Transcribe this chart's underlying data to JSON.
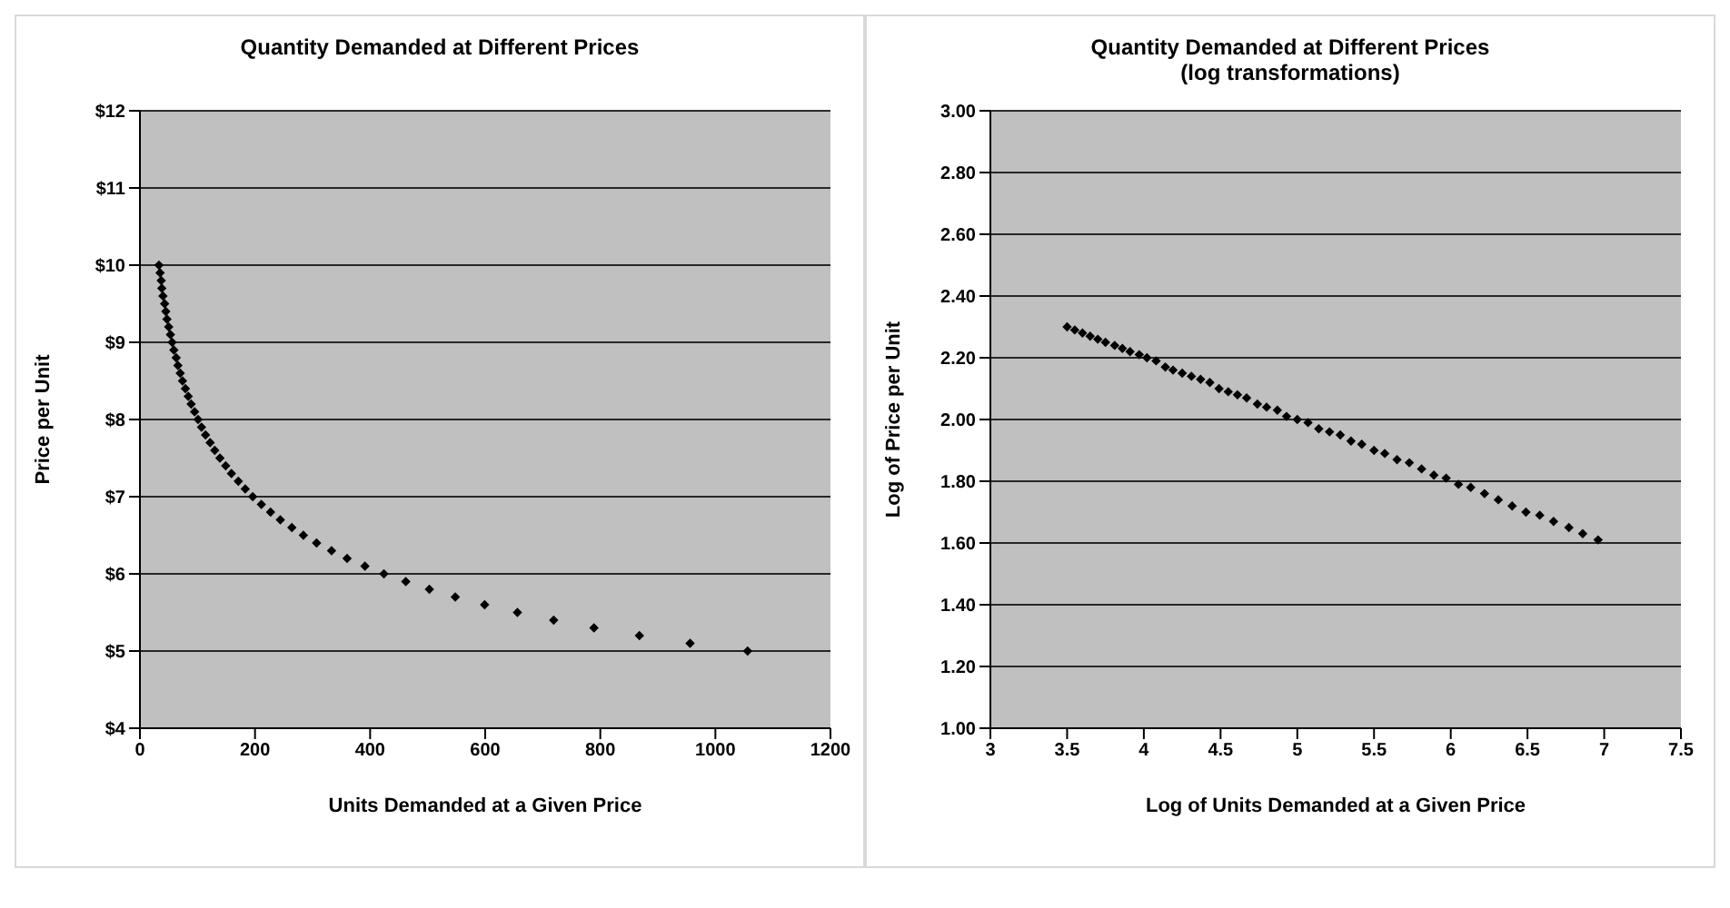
{
  "chart_data": [
    {
      "type": "scatter",
      "title": "Quantity Demanded at Different Prices",
      "xlabel": "Units Demanded at a Given Price",
      "ylabel": "Price per Unit",
      "xlim": [
        0,
        1200
      ],
      "xticks": [
        0,
        200,
        400,
        600,
        800,
        1000,
        1200
      ],
      "ylim": [
        4,
        12
      ],
      "yticks": [
        {
          "value": 4,
          "label": "$4"
        },
        {
          "value": 5,
          "label": "$5"
        },
        {
          "value": 6,
          "label": "$6"
        },
        {
          "value": 7,
          "label": "$7"
        },
        {
          "value": 8,
          "label": "$8"
        },
        {
          "value": 9,
          "label": "$9"
        },
        {
          "value": 10,
          "label": "$10"
        },
        {
          "value": 11,
          "label": "$11"
        },
        {
          "value": 12,
          "label": "$12"
        }
      ],
      "grid": "y",
      "legend": false,
      "marker": "diamond",
      "series": [
        {
          "color": "#000000",
          "x": [
            33,
            35,
            37,
            38,
            40,
            43,
            45,
            47,
            50,
            53,
            56,
            59,
            63,
            66,
            70,
            74,
            79,
            84,
            89,
            95,
            101,
            107,
            114,
            122,
            130,
            139,
            149,
            159,
            171,
            183,
            196,
            211,
            227,
            244,
            264,
            284,
            307,
            333,
            360,
            391,
            424,
            462,
            503,
            548,
            599,
            656,
            719,
            789,
            868,
            956,
            1056
          ],
          "values": [
            10,
            9.9,
            9.8,
            9.7,
            9.6,
            9.5,
            9.4,
            9.3,
            9.2,
            9.1,
            9,
            8.9,
            8.8,
            8.7,
            8.6,
            8.5,
            8.4,
            8.3,
            8.2,
            8.1,
            8,
            7.9,
            7.8,
            7.7,
            7.6,
            7.5,
            7.4,
            7.3,
            7.2,
            7.1,
            7,
            6.9,
            6.8,
            6.7,
            6.6,
            6.5,
            6.4,
            6.3,
            6.2,
            6.1,
            6,
            5.9,
            5.8,
            5.7,
            5.6,
            5.5,
            5.4,
            5.3,
            5.2,
            5.1,
            5
          ]
        }
      ]
    },
    {
      "type": "scatter",
      "title": "Quantity Demanded at Different Prices\n(log transformations)",
      "xlabel": "Log of Units Demanded at a Given Price",
      "ylabel": "Log of Price per Unit",
      "xlim": [
        3,
        7.5
      ],
      "xticks": [
        3,
        3.5,
        4,
        4.5,
        5,
        5.5,
        6,
        6.5,
        7,
        7.5
      ],
      "ylim": [
        1,
        3
      ],
      "yticks": [
        {
          "value": 1,
          "label": "1.00"
        },
        {
          "value": 1.2,
          "label": "1.20"
        },
        {
          "value": 1.4,
          "label": "1.40"
        },
        {
          "value": 1.6,
          "label": "1.60"
        },
        {
          "value": 1.8,
          "label": "1.80"
        },
        {
          "value": 2,
          "label": "2.00"
        },
        {
          "value": 2.2,
          "label": "2.20"
        },
        {
          "value": 2.4,
          "label": "2.40"
        },
        {
          "value": 2.6,
          "label": "2.60"
        },
        {
          "value": 2.8,
          "label": "2.80"
        },
        {
          "value": 3,
          "label": "3.00"
        }
      ],
      "grid": "y",
      "legend": false,
      "marker": "diamond",
      "series": [
        {
          "color": "#000000",
          "x": [
            3.5,
            3.55,
            3.6,
            3.65,
            3.7,
            3.75,
            3.81,
            3.86,
            3.91,
            3.97,
            4.02,
            4.08,
            4.14,
            4.19,
            4.25,
            4.31,
            4.37,
            4.43,
            4.49,
            4.55,
            4.61,
            4.67,
            4.74,
            4.8,
            4.87,
            4.93,
            5,
            5.07,
            5.14,
            5.21,
            5.28,
            5.35,
            5.42,
            5.5,
            5.57,
            5.65,
            5.73,
            5.81,
            5.89,
            5.97,
            6.05,
            6.13,
            6.22,
            6.31,
            6.4,
            6.49,
            6.58,
            6.67,
            6.77,
            6.86,
            6.96
          ],
          "values": [
            2.3,
            2.29,
            2.28,
            2.27,
            2.26,
            2.25,
            2.24,
            2.23,
            2.22,
            2.21,
            2.2,
            2.19,
            2.17,
            2.16,
            2.15,
            2.14,
            2.13,
            2.12,
            2.1,
            2.09,
            2.08,
            2.07,
            2.05,
            2.04,
            2.03,
            2.01,
            2,
            1.99,
            1.97,
            1.96,
            1.95,
            1.93,
            1.92,
            1.9,
            1.89,
            1.87,
            1.86,
            1.84,
            1.82,
            1.81,
            1.79,
            1.78,
            1.76,
            1.74,
            1.72,
            1.7,
            1.69,
            1.67,
            1.65,
            1.63,
            1.61
          ]
        }
      ]
    }
  ]
}
